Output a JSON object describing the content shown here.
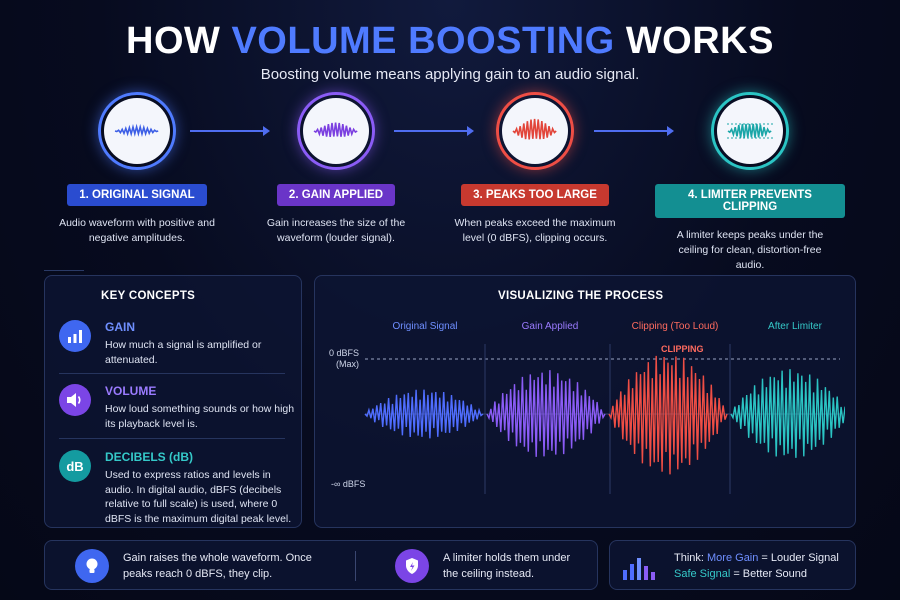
{
  "title": {
    "prefix": "HOW",
    "accent": "VOLUME BOOSTING",
    "suffix": "WORKS"
  },
  "subtitle": "Boosting volume means applying gain to an audio signal.",
  "steps": [
    {
      "label": "1. ORIGINAL SIGNAL",
      "desc": "Audio waveform with positive and negative amplitudes.",
      "color": "#2a4cd0",
      "ring": "#4f7bff",
      "wave": "#3d5fe6",
      "icon": "waveform-icon"
    },
    {
      "label": "2. GAIN APPLIED",
      "desc": "Gain increases the size of the waveform (louder signal).",
      "color": "#6a35c8",
      "ring": "#8b5cf6",
      "wave": "#7b3fe0",
      "icon": "waveform-icon"
    },
    {
      "label": "3. PEAKS TOO LARGE",
      "desc": "When peaks exceed the maximum level (0 dBFS), clipping occurs.",
      "color": "#c7392f",
      "ring": "#ef4e45",
      "wave": "#e2453a",
      "icon": "waveform-icon"
    },
    {
      "label": "4. LIMITER PREVENTS CLIPPING",
      "desc": "A limiter keeps peaks under the ceiling for clean, distortion-free audio.",
      "color": "#138f92",
      "ring": "#2bc4c4",
      "wave": "#1aa6a8",
      "icon": "limited-waveform-icon"
    }
  ],
  "key_concepts": {
    "title": "KEY CONCEPTS",
    "items": [
      {
        "name": "GAIN",
        "text": "How much a signal is amplified or attenuated.",
        "color": "#3f67f0",
        "name_color": "#6f8fff",
        "icon": "bar-chart-icon"
      },
      {
        "name": "VOLUME",
        "text": "How loud something sounds or how high its playback level is.",
        "color": "#7b45e6",
        "name_color": "#9b7bff",
        "icon": "speaker-icon"
      },
      {
        "name": "DECIBELS (dB)",
        "text": "Used to express ratios and levels in audio. In digital audio, dBFS (decibels relative to full scale) is used, where 0 dBFS is the maximum digital peak level.",
        "color": "#149ba0",
        "name_color": "#35c9c9",
        "icon": "db-text",
        "icon_text": "dB"
      }
    ]
  },
  "visualizing": {
    "title": "VISUALIZING THE PROCESS",
    "segments": [
      {
        "label": "Original Signal",
        "color": "#4f6dff",
        "label_color": "#6f8fff",
        "amp": 0.45
      },
      {
        "label": "Gain Applied",
        "color": "#8b5cf6",
        "label_color": "#9b7bff",
        "amp": 0.8
      },
      {
        "label": "Clipping (Too Loud)",
        "color": "#ef4e45",
        "label_color": "#ff6b5f",
        "amp": 1.1
      },
      {
        "label": "After Limiter",
        "color": "#2bc4c4",
        "label_color": "#35c9c9",
        "amp": 0.82
      }
    ],
    "ceiling_label": "0 dBFS",
    "ceiling_sub": "(Max)",
    "floor_label": "-∞ dBFS",
    "clipping_label": "CLIPPING"
  },
  "bottom": {
    "left_text": "Gain raises the whole waveform. Once peaks reach 0 dBFS, they clip.",
    "middle_text": "A limiter holds them under the ceiling instead.",
    "right_prefix": "Think: ",
    "right_accent1": "More Gain",
    "right_rest1": " = Louder Signal",
    "right_accent2": "Safe Signal",
    "right_rest2": " = Better Sound"
  }
}
